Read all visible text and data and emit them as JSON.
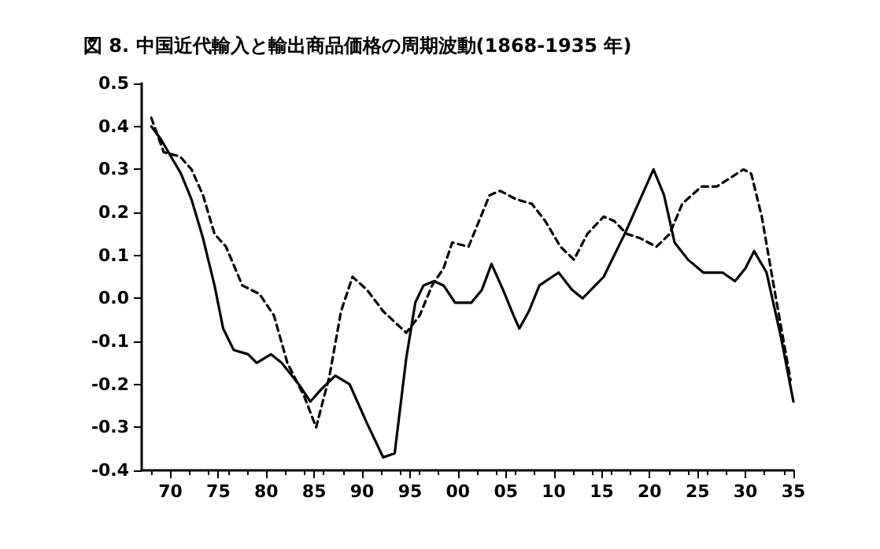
{
  "chart_data": {
    "type": "line",
    "title": "図 8. 中国近代輸入と輸出商品価格の周期波動(1868-1935 年)",
    "xlim": [
      1867,
      1935
    ],
    "xticks": [
      {
        "value": 1870,
        "label": "70"
      },
      {
        "value": 1875,
        "label": "75"
      },
      {
        "value": 1880,
        "label": "80"
      },
      {
        "value": 1885,
        "label": "85"
      },
      {
        "value": 1890,
        "label": "90"
      },
      {
        "value": 1895,
        "label": "95"
      },
      {
        "value": 1900,
        "label": "00"
      },
      {
        "value": 1905,
        "label": "05"
      },
      {
        "value": 1910,
        "label": "10"
      },
      {
        "value": 1915,
        "label": "15"
      },
      {
        "value": 1920,
        "label": "20"
      },
      {
        "value": 1925,
        "label": "25"
      },
      {
        "value": 1930,
        "label": "30"
      },
      {
        "value": 1935,
        "label": "35"
      }
    ],
    "ylim": [
      -0.4,
      0.5
    ],
    "yticks": [
      -0.4,
      -0.3,
      -0.2,
      -0.1,
      {
        "value": 0,
        "label": "0.0"
      },
      0.1,
      0.2,
      0.3,
      0.4,
      0.5
    ],
    "grid": false,
    "marker": "none",
    "series": [
      {
        "color": "#000000",
        "line_style": "solid",
        "x": [
          1868,
          1869,
          1871.1,
          1872.2,
          1873.4,
          1874.6,
          1875.5,
          1876.6,
          1878.1,
          1879,
          1880.5,
          1881.6,
          1883.4,
          1884.6,
          1885.8,
          1887.2,
          1888.7,
          1890.5,
          1892.2,
          1893.4,
          1894.6,
          1895.55,
          1896.4,
          1897.5,
          1898.5,
          1899.7,
          1901.4,
          1902.5,
          1903.5,
          1904.7,
          1905.8,
          1906.4,
          1907.4,
          1908.5,
          1910.5,
          1911.9,
          1913,
          1915.2,
          1917.4,
          1919,
          1920.4,
          1921.5,
          1922.6,
          1924,
          1925.6,
          1927.6,
          1928.9,
          1930,
          1930.9,
          1932.2,
          1933.7,
          1935
        ],
        "values": [
          0.4,
          0.37,
          0.29,
          0.23,
          0.14,
          0.03,
          -0.07,
          -0.12,
          -0.13,
          -0.15,
          -0.13,
          -0.15,
          -0.2,
          -0.24,
          -0.21,
          -0.18,
          -0.2,
          -0.29,
          -0.37,
          -0.36,
          -0.14,
          -0.01,
          0.03,
          0.04,
          0.03,
          -0.01,
          -0.01,
          0.02,
          0.08,
          0.02,
          -0.04,
          -0.07,
          -0.03,
          0.03,
          0.06,
          0.02,
          0.0,
          0.05,
          0.15,
          0.23,
          0.3,
          0.24,
          0.13,
          0.09,
          0.06,
          0.06,
          0.04,
          0.07,
          0.11,
          0.06,
          -0.09,
          -0.24
        ]
      },
      {
        "color": "#000000",
        "line_style": "dashed",
        "x": [
          1868,
          1869.3,
          1871,
          1872.2,
          1873.4,
          1874.6,
          1875.8,
          1877.5,
          1879.3,
          1880.8,
          1882.2,
          1884,
          1885.2,
          1886.6,
          1887.8,
          1889,
          1890.5,
          1892.2,
          1894.6,
          1896,
          1897.3,
          1898.5,
          1899.4,
          1901.1,
          1902.2,
          1903.3,
          1904.4,
          1906.1,
          1907.7,
          1909.1,
          1910.7,
          1912.1,
          1913.5,
          1915.2,
          1916.3,
          1917.6,
          1919,
          1920.7,
          1922.1,
          1923.4,
          1925.4,
          1927,
          1928.4,
          1929.8,
          1930.6,
          1931.7,
          1933.1,
          1934.7
        ],
        "values": [
          0.42,
          0.34,
          0.33,
          0.3,
          0.24,
          0.15,
          0.12,
          0.03,
          0.01,
          -0.04,
          -0.15,
          -0.23,
          -0.3,
          -0.18,
          -0.03,
          0.05,
          0.02,
          -0.03,
          -0.08,
          -0.04,
          0.03,
          0.07,
          0.13,
          0.12,
          0.18,
          0.24,
          0.25,
          0.23,
          0.22,
          0.18,
          0.12,
          0.09,
          0.15,
          0.19,
          0.18,
          0.15,
          0.14,
          0.12,
          0.15,
          0.22,
          0.26,
          0.26,
          0.28,
          0.3,
          0.29,
          0.19,
          0.01,
          -0.19
        ]
      }
    ]
  }
}
